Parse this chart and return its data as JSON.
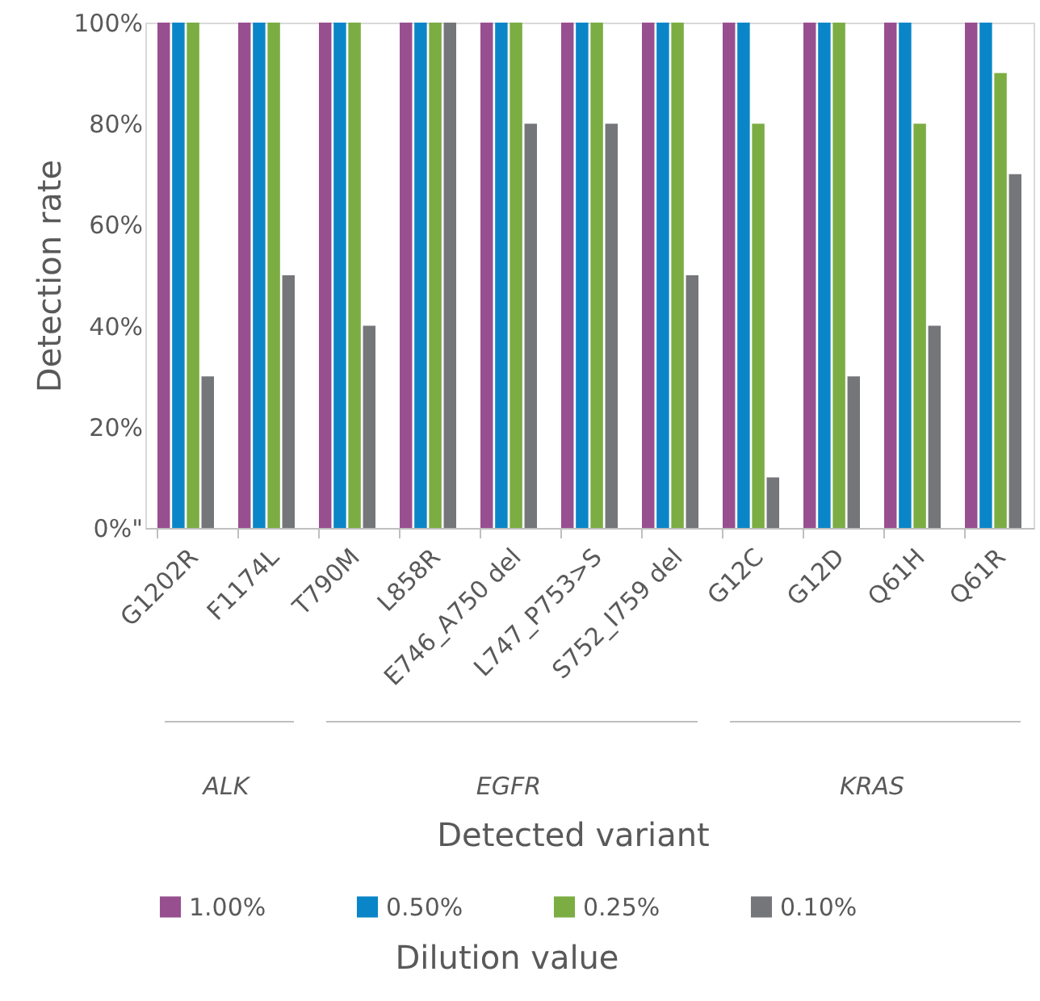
{
  "chart_data": {
    "type": "bar",
    "xlabel": "Detected variant",
    "ylabel": "Detection rate",
    "legend_title": "Dilution value",
    "legend": "bottom",
    "grid": false,
    "categories": [
      "G1202R",
      "F1174L",
      "T790M",
      "L858R",
      "E746_A750 del",
      "L747_P753>S",
      "S752_I759 del",
      "G12C",
      "G12D",
      "Q61H",
      "Q61R"
    ],
    "series": [
      {
        "name": "1.00%",
        "color": "#984f90",
        "values": [
          100,
          100,
          100,
          100,
          100,
          100,
          100,
          100,
          100,
          100,
          100
        ]
      },
      {
        "name": "0.50%",
        "color": "#0a86c8",
        "values": [
          100,
          100,
          100,
          100,
          100,
          100,
          100,
          100,
          100,
          100,
          100
        ]
      },
      {
        "name": "0.25%",
        "color": "#7bad43",
        "values": [
          100,
          100,
          100,
          100,
          100,
          100,
          100,
          80,
          100,
          80,
          90
        ]
      },
      {
        "name": "0.10%",
        "color": "#75767a",
        "values": [
          30,
          50,
          40,
          100,
          80,
          80,
          50,
          10,
          30,
          40,
          70
        ]
      }
    ],
    "ylim": [
      0,
      100
    ],
    "yticks": [
      {
        "value": 0,
        "label": "0%\""
      },
      {
        "value": 20,
        "label": "20%"
      },
      {
        "value": 40,
        "label": "40%"
      },
      {
        "value": 60,
        "label": "60%"
      },
      {
        "value": 80,
        "label": "80%"
      },
      {
        "value": 100,
        "label": "100%"
      }
    ],
    "annotations": [
      "ALK",
      "EGFR",
      "KRAS"
    ]
  }
}
